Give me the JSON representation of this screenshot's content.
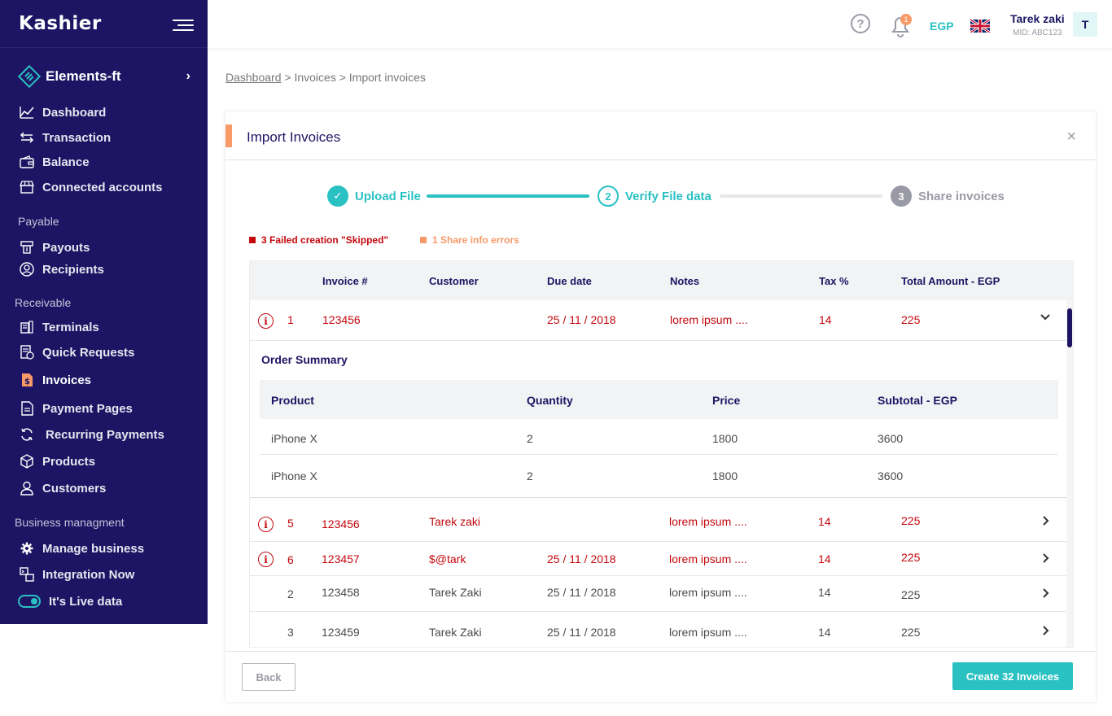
{
  "brand": {
    "logo_text": "Kashier"
  },
  "sidebar": {
    "org_name": "Elements-ft",
    "items_main": [
      {
        "label": "Dashboard",
        "icon": "chart-line-icon"
      },
      {
        "label": "Transaction",
        "icon": "arrows-exchange-icon"
      },
      {
        "label": "Balance",
        "icon": "wallet-icon"
      },
      {
        "label": "Connected accounts",
        "icon": "store-icon"
      }
    ],
    "section_payable": "Payable",
    "items_payable": [
      {
        "label": "Payouts",
        "icon": "payout-icon"
      },
      {
        "label": "Recipients",
        "icon": "user-circle-icon"
      }
    ],
    "section_receivable": "Receivable",
    "items_receivable": [
      {
        "label": "Terminals",
        "icon": "terminal-icon"
      },
      {
        "label": "Quick Requests",
        "icon": "receipt-icon"
      },
      {
        "label": "Invoices",
        "icon": "invoice-icon"
      },
      {
        "label": "Payment Pages",
        "icon": "page-icon"
      },
      {
        "label": "Recurring Payments",
        "icon": "recurring-icon"
      },
      {
        "label": "Products",
        "icon": "box-icon"
      },
      {
        "label": "Customers",
        "icon": "user-icon"
      }
    ],
    "section_business": "Business managment",
    "items_business": [
      {
        "label": "Manage business",
        "icon": "gear-icon"
      },
      {
        "label": "Integration Now",
        "icon": "integration-icon"
      }
    ],
    "live_toggle_label": "It's Live data",
    "active_color": "#f79a68"
  },
  "header": {
    "notifications_count": "1",
    "currency": "EGP",
    "user_name": "Tarek zaki",
    "user_mid": "MID: ABC123",
    "avatar_initial": "T"
  },
  "breadcrumb": {
    "link": "Dashboard",
    "rest": " > Invoices > Import invoices"
  },
  "card": {
    "title": "Import Invoices",
    "close_symbol": "×"
  },
  "stepper": [
    {
      "number": "✓",
      "label": "Upload File",
      "state": "done"
    },
    {
      "number": "2",
      "label": "Verify File data",
      "state": "current"
    },
    {
      "number": "3",
      "label": "Share invoices",
      "state": "todo"
    }
  ],
  "legend": {
    "failed": "3  Failed creation \"Skipped\"",
    "share_errors": "1  Share info errors",
    "failed_color": "#c2070c",
    "share_color": "#f79a68"
  },
  "table": {
    "headers": [
      "Invoice #",
      "Customer",
      "Due date",
      "Notes",
      "Tax %",
      "Total Amount - EGP"
    ],
    "expanded_row": {
      "index": "1",
      "invoice": "123456",
      "customer": "",
      "due": "25 / 11 / 2018",
      "notes": "lorem ipsum ....",
      "tax": "14",
      "total": "225"
    },
    "order_summary_title": "Order Summary",
    "sub_headers": [
      "Product",
      "Quantity",
      "Price",
      "Subtotal - EGP"
    ],
    "sub_rows": [
      {
        "product": "iPhone X",
        "quantity": "2",
        "price": "1800",
        "subtotal": "3600"
      },
      {
        "product": "iPhone X",
        "quantity": "2",
        "price": "1800",
        "subtotal": "3600"
      }
    ],
    "rows": [
      {
        "index": "5",
        "invoice": "123456",
        "customer": "Tarek zaki",
        "due": "",
        "notes": "lorem ipsum ....",
        "tax": "14",
        "total": "225",
        "error": true
      },
      {
        "index": "6",
        "invoice": "123457",
        "customer": "$@tark",
        "due": "25 / 11 / 2018",
        "notes": "lorem ipsum ....",
        "tax": "14",
        "total": "225",
        "error": true
      },
      {
        "index": "2",
        "invoice": "123458",
        "customer": "Tarek Zaki",
        "due": "25 / 11 / 2018",
        "notes": "lorem ipsum ....",
        "tax": "14",
        "total": "225",
        "error": false
      },
      {
        "index": "3",
        "invoice": "123459",
        "customer": "Tarek Zaki",
        "due": "25 / 11 / 2018",
        "notes": "lorem ipsum ....",
        "tax": "14",
        "total": "225",
        "error": false
      }
    ]
  },
  "footer": {
    "back_label": "Back",
    "create_label": "Create 32 Invoices"
  }
}
